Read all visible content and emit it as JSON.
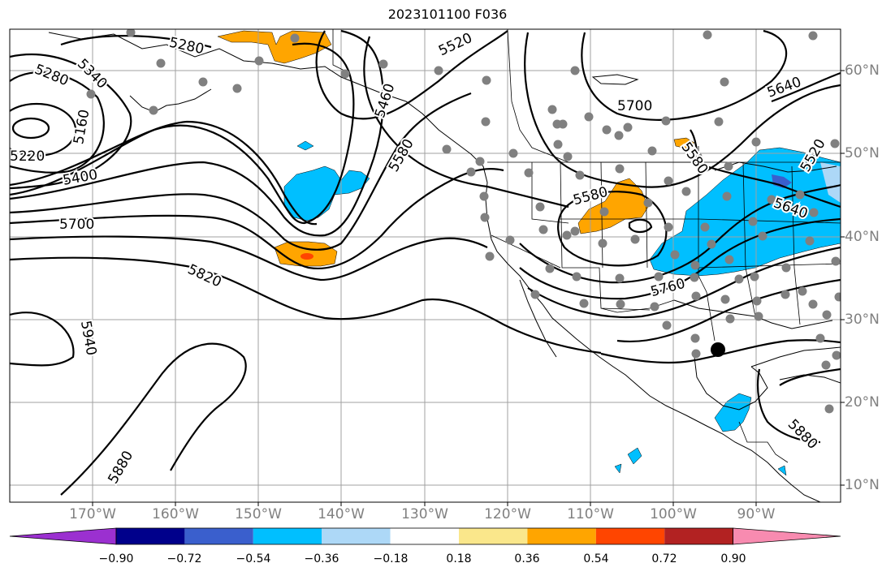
{
  "title": "2023101100 F036",
  "lon_labels": [
    "170°W",
    "160°W",
    "150°W",
    "140°W",
    "130°W",
    "120°W",
    "110°W",
    "100°W",
    "90°W"
  ],
  "lat_labels": [
    "60°N",
    "50°N",
    "40°N",
    "30°N",
    "20°N",
    "10°N"
  ],
  "contour_labels": [
    "5280",
    "5280",
    "5340",
    "5160",
    "5220",
    "5400",
    "5700",
    "5820",
    "5940",
    "5880",
    "5460",
    "5580",
    "5520",
    "5700",
    "5640",
    "5520",
    "5580",
    "5640",
    "5760",
    "5580",
    "5880"
  ],
  "colorbar": {
    "colors": [
      "#9b30d0",
      "#00008b",
      "#3a5fcd",
      "#00bfff",
      "#add8f7",
      "#ffffff",
      "#fae78b",
      "#ffa500",
      "#ff4500",
      "#b22222",
      "#f88bb0"
    ],
    "tick_labels": [
      "−0.90",
      "−0.72",
      "−0.54",
      "−0.36",
      "−0.18",
      "0.18",
      "0.36",
      "0.54",
      "0.72",
      "0.90"
    ]
  },
  "station_marker_color": "#808080",
  "storm_marker": "filled black circle"
}
